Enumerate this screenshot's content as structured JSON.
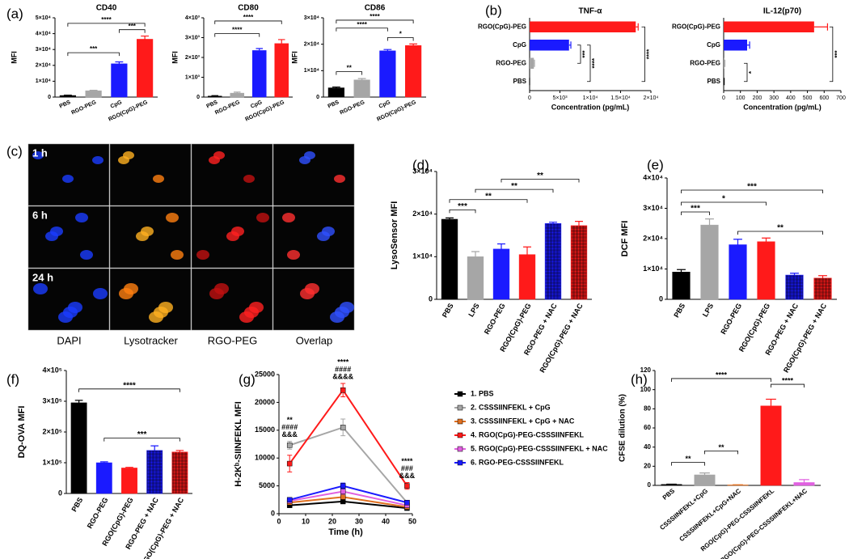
{
  "panel_labels": [
    "(a)",
    "(b)",
    "(c)",
    "(d)",
    "(e)",
    "(f)",
    "(g)",
    "(h)"
  ],
  "microscopy": {
    "rows": [
      "1 h",
      "6 h",
      "24 h"
    ],
    "columns": [
      "DAPI",
      "Lysotracker",
      "RGO-PEG",
      "Overlap"
    ]
  },
  "chart_data": [
    {
      "type": "bar",
      "title": "CD40",
      "ylabel": "MFI",
      "categories": [
        "PBS",
        "RGO-PEG",
        "CpG",
        "RGO(CpG)-PEG"
      ],
      "values": [
        1000,
        4000,
        21000,
        36500
      ],
      "errors": [
        200,
        300,
        1200,
        2000
      ],
      "colors": [
        "#000000",
        "#a6a6a6",
        "#1a1aff",
        "#ff1a1a"
      ],
      "ylim": [
        0,
        50000
      ],
      "yticks": [
        0,
        {
          "value": 10000,
          "label": "1×10⁴"
        },
        {
          "value": 20000,
          "label": "2×10⁴"
        },
        {
          "value": 30000,
          "label": "3×10⁴"
        },
        {
          "value": 40000,
          "label": "4×10⁴"
        },
        {
          "value": 50000,
          "label": "5×10⁴"
        }
      ],
      "annotations": [
        "****",
        "***",
        "***"
      ]
    },
    {
      "type": "bar",
      "title": "CD80",
      "ylabel": "MFI",
      "categories": [
        "PBS",
        "RGO-PEG",
        "CpG",
        "RGO(CpG)-PEG"
      ],
      "values": [
        50,
        200,
        2350,
        2700
      ],
      "errors": [
        20,
        50,
        100,
        200
      ],
      "colors": [
        "#000000",
        "#a6a6a6",
        "#1a1aff",
        "#ff1a1a"
      ],
      "ylim": [
        0,
        4000
      ],
      "yticks": [
        0,
        {
          "value": 1000,
          "label": "1×10³"
        },
        {
          "value": 2000,
          "label": "2×10³"
        },
        {
          "value": 3000,
          "label": "3×10³"
        },
        {
          "value": 4000,
          "label": "4×10³"
        }
      ],
      "annotations": [
        "****",
        "****"
      ]
    },
    {
      "type": "bar",
      "title": "CD86",
      "ylabel": "MFI",
      "categories": [
        "PBS",
        "RGO-PEG",
        "CpG",
        "RGO(CpG)-PEG"
      ],
      "values": [
        3500,
        6500,
        17500,
        19500
      ],
      "errors": [
        300,
        500,
        500,
        600
      ],
      "colors": [
        "#000000",
        "#a6a6a6",
        "#1a1aff",
        "#ff1a1a"
      ],
      "ylim": [
        0,
        30000
      ],
      "yticks": [
        0,
        {
          "value": 10000,
          "label": "1×10⁴"
        },
        {
          "value": 20000,
          "label": "2×10⁴"
        },
        {
          "value": 30000,
          "label": "3×10⁴"
        }
      ],
      "annotations": [
        "****",
        "****",
        "*",
        "**"
      ]
    },
    {
      "type": "hbar",
      "title": "TNF-α",
      "xlabel": "Concentration (pg/mL)",
      "categories": [
        "RGO(CpG)-PEG",
        "CpG",
        "RGO-PEG",
        "PBS"
      ],
      "values": [
        17500,
        6500,
        700,
        0
      ],
      "errors": [
        400,
        300,
        100,
        0
      ],
      "colors": [
        "#ff1a1a",
        "#1a1aff",
        "#a6a6a6",
        "#000000"
      ],
      "xlim": [
        0,
        20000
      ],
      "xticks": [
        0,
        {
          "value": 5000,
          "label": "5×10³"
        },
        {
          "value": 10000,
          "label": "1×10⁴"
        },
        {
          "value": 15000,
          "label": "1.5×10⁴"
        },
        {
          "value": 20000,
          "label": "2×10⁴"
        }
      ],
      "annotations": [
        "***",
        "****",
        "****"
      ]
    },
    {
      "type": "hbar",
      "title": "IL-12(p70)",
      "xlabel": "Concentration (pg/mL)",
      "categories": [
        "RGO(CpG)-PEG",
        "CpG",
        "RGO-PEG",
        "PBS"
      ],
      "values": [
        540,
        140,
        5,
        2
      ],
      "errors": [
        80,
        15,
        2,
        1
      ],
      "colors": [
        "#ff1a1a",
        "#1a1aff",
        "#a6a6a6",
        "#000000"
      ],
      "xlim": [
        0,
        700
      ],
      "xticks": [
        0,
        100,
        200,
        300,
        400,
        500,
        600,
        700
      ],
      "annotations": [
        "*",
        "***"
      ]
    },
    {
      "type": "bar",
      "ylabel": "LysoSensor MFI",
      "categories": [
        "PBS",
        "LPS",
        "RGO-PEG",
        "RGO(CpG)-PEG",
        "RGO-PEG + NAC",
        "RGO(CpG)-PEG + NAC"
      ],
      "values": [
        18800,
        10000,
        11800,
        10500,
        17800,
        17300
      ],
      "errors": [
        300,
        1200,
        1200,
        1800,
        300,
        1000
      ],
      "colors": [
        "#000000",
        "#a6a6a6",
        "#1a1aff",
        "#ff1a1a",
        "#1a1aff",
        "#ff1a1a"
      ],
      "hatched": [
        false,
        false,
        false,
        false,
        true,
        true
      ],
      "ylim": [
        0,
        30000
      ],
      "yticks": [
        0,
        {
          "value": 10000,
          "label": "1×10⁴"
        },
        {
          "value": 20000,
          "label": "2×10⁴"
        },
        {
          "value": 30000,
          "label": "3×10⁴"
        }
      ],
      "annotations": [
        "***",
        "**",
        "**",
        "**"
      ]
    },
    {
      "type": "bar",
      "ylabel": "DCF MFI",
      "categories": [
        "PBS",
        "LPS",
        "RGO-PEG",
        "RGO(CpG)-PEG",
        "RGO-PEG + NAC",
        "RGO(CpG)-PEG + NAC"
      ],
      "values": [
        9000,
        24500,
        18000,
        19000,
        8000,
        7000
      ],
      "errors": [
        800,
        2000,
        1800,
        1200,
        600,
        800
      ],
      "colors": [
        "#000000",
        "#a6a6a6",
        "#1a1aff",
        "#ff1a1a",
        "#1a1aff",
        "#ff1a1a"
      ],
      "hatched": [
        false,
        false,
        false,
        false,
        true,
        true
      ],
      "ylim": [
        0,
        40000
      ],
      "yticks": [
        0,
        {
          "value": 10000,
          "label": "1×10⁴"
        },
        {
          "value": 20000,
          "label": "2×10⁴"
        },
        {
          "value": 30000,
          "label": "3×10⁴"
        },
        {
          "value": 40000,
          "label": "4×10⁴"
        }
      ],
      "annotations": [
        "***",
        "*",
        "***",
        "**"
      ]
    },
    {
      "type": "bar",
      "ylabel": "DQ-OVA MFI",
      "categories": [
        "PBS",
        "RGO-PEG",
        "RGO(CpG)-PEG",
        "RGO-PEG + NAC",
        "RGO(CpG)-PEG + NAC"
      ],
      "values": [
        295000,
        100000,
        83000,
        140000,
        135000
      ],
      "errors": [
        8000,
        3000,
        2000,
        15000,
        5000
      ],
      "colors": [
        "#000000",
        "#1a1aff",
        "#ff1a1a",
        "#1a1aff",
        "#ff1a1a"
      ],
      "hatched": [
        false,
        false,
        false,
        true,
        true
      ],
      "ylim": [
        0,
        400000
      ],
      "yticks": [
        0,
        {
          "value": 100000,
          "label": "1×10⁵"
        },
        {
          "value": 200000,
          "label": "2×10⁵"
        },
        {
          "value": 300000,
          "label": "3×10⁵"
        },
        {
          "value": 400000,
          "label": "4×10⁵"
        }
      ],
      "annotations": [
        "****",
        "***"
      ]
    },
    {
      "type": "line",
      "ylabel": "H-2Kᵇ-SIINFEKL MFI",
      "xlabel": "Time (h)",
      "x": [
        4,
        24,
        48
      ],
      "xlim": [
        0,
        50
      ],
      "xticks": [
        0,
        10,
        20,
        30,
        40,
        50
      ],
      "ylim": [
        0,
        25000
      ],
      "yticks": [
        0,
        5000,
        10000,
        15000,
        20000,
        25000
      ],
      "series": [
        {
          "name": "1. PBS",
          "color": "#000000",
          "values": [
            1500,
            2200,
            1000
          ],
          "errors": [
            300,
            400,
            200
          ]
        },
        {
          "name": "2. CSSSIINFEKL + CpG",
          "color": "#a6a6a6",
          "values": [
            12300,
            15500,
            2000
          ],
          "errors": [
            700,
            1500,
            300
          ]
        },
        {
          "name": "3. CSSSIINFEKL + CpG + NAC",
          "color": "#e07020",
          "values": [
            2000,
            3000,
            1200
          ],
          "errors": [
            300,
            400,
            200
          ]
        },
        {
          "name": "4. RGO(CpG)-PEG-CSSSIINFEKL",
          "color": "#ff1a1a",
          "values": [
            9000,
            22200,
            5000
          ],
          "errors": [
            1500,
            1200,
            600
          ]
        },
        {
          "name": "5. RGO(CpG)-PEG-CSSSIINFEKL + NAC",
          "color": "#e060e0",
          "values": [
            2300,
            4000,
            1500
          ],
          "errors": [
            300,
            500,
            200
          ]
        },
        {
          "name": "6. RGO-PEG-CSSSIINFEKL",
          "color": "#1a1aff",
          "values": [
            2500,
            5000,
            2000
          ],
          "errors": [
            300,
            500,
            300
          ]
        }
      ],
      "annotations": [
        "**",
        "####",
        "&&&",
        "****",
        "####",
        "&&&&",
        "****",
        "###",
        "&&&"
      ]
    },
    {
      "type": "bar",
      "ylabel": "CFSE dilution (%)",
      "categories": [
        "PBS",
        "CSSSIINFEKL+CpG",
        "CSSSIINFEKL+CpG+NAC",
        "RGO(CpG)-PEG-CSSSIINFEKL",
        "RGO(CpG)-PEG-CSSSIINFEKL+NAC"
      ],
      "values": [
        1,
        11,
        0.5,
        83,
        3
      ],
      "errors": [
        0.3,
        2,
        0.2,
        7,
        3
      ],
      "colors": [
        "#000000",
        "#a6a6a6",
        "#e07020",
        "#ff1a1a",
        "#e060e0"
      ],
      "ylim": [
        0,
        120
      ],
      "yticks": [
        0,
        20,
        40,
        60,
        80,
        100,
        120
      ],
      "annotations": [
        "**",
        "**",
        "****",
        "****"
      ]
    }
  ]
}
